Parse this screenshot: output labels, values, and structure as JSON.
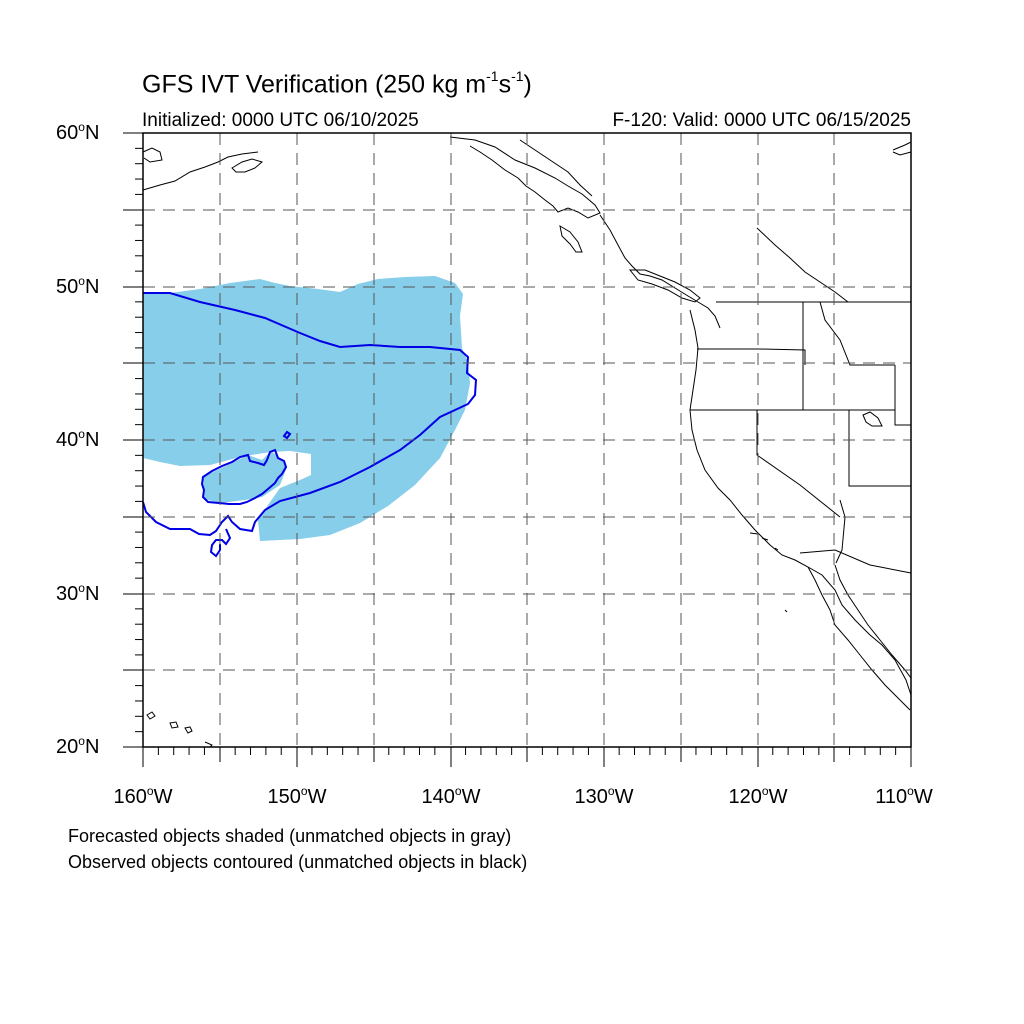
{
  "title": {
    "prefix": "GFS IVT Verification (250 kg m",
    "exp1": "-1",
    "mid": "s",
    "exp2": "-1",
    "suffix": ")"
  },
  "subtitle_left": "Initialized: 0000 UTC 06/10/2025",
  "subtitle_right": "F-120: Valid: 0000 UTC 06/15/2025",
  "lat_labels": [
    {
      "num": "60",
      "hem": "N"
    },
    {
      "num": "50",
      "hem": "N"
    },
    {
      "num": "40",
      "hem": "N"
    },
    {
      "num": "30",
      "hem": "N"
    },
    {
      "num": "20",
      "hem": "N"
    }
  ],
  "lon_labels": [
    {
      "num": "160",
      "hem": "W"
    },
    {
      "num": "150",
      "hem": "W"
    },
    {
      "num": "140",
      "hem": "W"
    },
    {
      "num": "130",
      "hem": "W"
    },
    {
      "num": "120",
      "hem": "W"
    },
    {
      "num": "110",
      "hem": "W"
    }
  ],
  "footnotes": [
    "Forecasted objects shaded (unmatched objects in gray)",
    "Observed objects contoured (unmatched objects in black)"
  ],
  "colors": {
    "forecast_fill": "#87ceea",
    "observed_contour": "#0000e6",
    "coastline": "#000000",
    "grid": "#555555"
  },
  "map": {
    "projection": "cylindrical equidistant",
    "lon_range": [
      -160,
      -110
    ],
    "lat_range": [
      20,
      60
    ],
    "grid_spacing_deg": 5,
    "grid_style": "dashed"
  }
}
